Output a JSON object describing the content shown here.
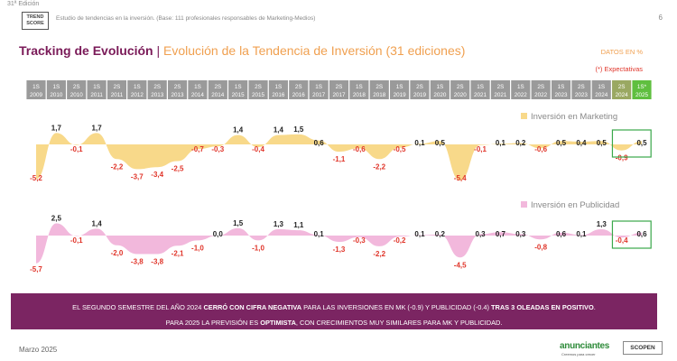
{
  "header": {
    "edition": "31ª Edición",
    "logo_line1": "TREND",
    "logo_line2": "SCORE",
    "study_text": "Estudio de tendencias en la inversión. (Base: 111 profesionales responsables de Marketing-Medios)",
    "page_number": "6"
  },
  "title": {
    "main": "Tracking de Evolución",
    "separator": "|",
    "sub": "Evolución de la Tendencia de Inversión (31 ediciones)"
  },
  "notes": {
    "datos": "DATOS EN %",
    "expectativas": "(*) Expectativas"
  },
  "chart_data": {
    "type": "area",
    "periods": [
      {
        "sem": "1S",
        "year": "2009"
      },
      {
        "sem": "1S",
        "year": "2010"
      },
      {
        "sem": "2S",
        "year": "2010"
      },
      {
        "sem": "1S",
        "year": "2011"
      },
      {
        "sem": "2S",
        "year": "2011"
      },
      {
        "sem": "1S",
        "year": "2012"
      },
      {
        "sem": "2S",
        "year": "2013"
      },
      {
        "sem": "2S",
        "year": "2013"
      },
      {
        "sem": "1S",
        "year": "2014"
      },
      {
        "sem": "2S",
        "year": "2014"
      },
      {
        "sem": "1S",
        "year": "2015"
      },
      {
        "sem": "2S",
        "year": "2015"
      },
      {
        "sem": "1S",
        "year": "2016"
      },
      {
        "sem": "2S",
        "year": "2016"
      },
      {
        "sem": "1S",
        "year": "2017"
      },
      {
        "sem": "2S",
        "year": "2017"
      },
      {
        "sem": "1S",
        "year": "2018"
      },
      {
        "sem": "2S",
        "year": "2018"
      },
      {
        "sem": "1S",
        "year": "2019"
      },
      {
        "sem": "2S",
        "year": "2019"
      },
      {
        "sem": "1S",
        "year": "2020"
      },
      {
        "sem": "2S",
        "year": "2020"
      },
      {
        "sem": "1S",
        "year": "2021"
      },
      {
        "sem": "2S",
        "year": "2021"
      },
      {
        "sem": "1S",
        "year": "2022"
      },
      {
        "sem": "2S",
        "year": "2022"
      },
      {
        "sem": "1S",
        "year": "2023"
      },
      {
        "sem": "2S",
        "year": "2023"
      },
      {
        "sem": "1S",
        "year": "2024"
      },
      {
        "sem": "2S",
        "year": "2024"
      },
      {
        "sem": "1S*",
        "year": "2025"
      }
    ],
    "series": [
      {
        "name": "Inversión en Marketing",
        "labels": [
          "-5,2",
          "1,7",
          "-0,1",
          "1,7",
          "-2,2",
          "-3,7",
          "-3,4",
          "-2,5",
          "-0,7",
          "-0,3",
          "1,4",
          "-0,4",
          "1,4",
          "1,5",
          "0,6",
          "-1,1",
          "-0,6",
          "-2,2",
          "-0,5",
          "0,1",
          "0,5",
          "-5,4",
          "-0,1",
          "0,1",
          "0,2",
          "-0,6",
          "0,5",
          "0,4",
          "0,5",
          "-0,9",
          "0,5"
        ],
        "values": [
          -5.2,
          1.7,
          -0.1,
          1.7,
          -2.2,
          -3.7,
          -3.4,
          -2.5,
          -0.7,
          -0.3,
          1.4,
          -0.4,
          1.4,
          1.5,
          0.6,
          -1.1,
          -0.6,
          -2.2,
          -0.5,
          0.1,
          0.5,
          -5.4,
          -0.1,
          0.1,
          0.2,
          -0.6,
          0.5,
          0.4,
          0.5,
          -0.9,
          0.5
        ],
        "color": "#f8d98a"
      },
      {
        "name": "Inversión en Publicidad",
        "labels": [
          "-5,7",
          "2,5",
          "-0,1",
          "1,4",
          "-2,0",
          "-3,8",
          "-3,8",
          "-2,1",
          "-1,0",
          "0,0",
          "1,5",
          "-1,0",
          "1,3",
          "1,1",
          "0,1",
          "-1,3",
          "-0,3",
          "-2,2",
          "-0,2",
          "0,1",
          "0,2",
          "-4,5",
          "0,3",
          "0,7",
          "0,3",
          "-0,8",
          "0,6",
          "0,1",
          "1,3",
          "-0,4",
          "0,6"
        ],
        "values": [
          -5.7,
          2.5,
          -0.1,
          1.4,
          -2.0,
          -3.8,
          -3.8,
          -2.1,
          -1.0,
          0.0,
          1.5,
          -1.0,
          1.3,
          1.1,
          0.1,
          -1.3,
          -0.3,
          -2.2,
          -0.2,
          0.1,
          0.2,
          -4.5,
          0.3,
          0.7,
          0.3,
          -0.8,
          0.6,
          0.1,
          1.3,
          -0.4,
          0.6
        ],
        "color": "#f2b8dc"
      }
    ],
    "negative_label_color": "#e0352a",
    "positive_label_color": "#222222",
    "highlight_color": "#3aa84a",
    "header_colors": {
      "past": "#9a9a9a",
      "current": "#9aa862",
      "expectation": "#5fbf3f"
    }
  },
  "banner": {
    "line1_a": "EL SEGUNDO SEMESTRE DEL AÑO 2024 ",
    "line1_b": "CERRÓ CON CIFRA NEGATIVA",
    "line1_c": " PARA LAS INVERSIONES EN MK (-0.9) Y PUBLICIDAD (-0.4) ",
    "line1_d": "TRAS 3 OLEADAS EN POSITIVO",
    "line1_e": ".",
    "line2_a": "PARA 2025 LA PREVISIÓN ES ",
    "line2_b": "OPTIMISTA",
    "line2_c": ", CON CRECIMIENTOS MUY SIMILARES PARA MK Y PUBLICIDAD."
  },
  "footer": {
    "date": "Marzo 2025",
    "brand": "anunciantes",
    "brand_tagline": "Creemos para crecer",
    "partner": "SCOPEN"
  }
}
